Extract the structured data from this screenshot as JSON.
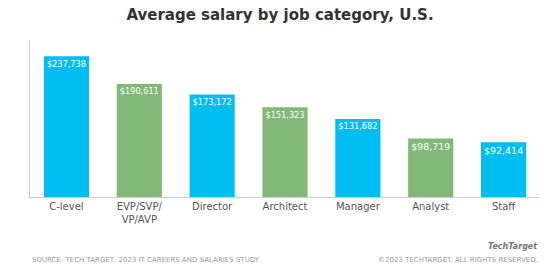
{
  "chart_data": {
    "type": "bar",
    "title": "Average salary by job category, U.S.",
    "categories": [
      "C-level",
      "EVP/SVP/\nVP/AVP",
      "Director",
      "Architect",
      "Manager",
      "Analyst",
      "Staff"
    ],
    "values": [
      237738,
      190611,
      173172,
      151323,
      131682,
      98719,
      92414
    ],
    "value_labels": [
      "$237,738",
      "$190,611",
      "$173,172",
      "$151,323",
      "$131,682",
      "$98,719",
      "$92,414"
    ],
    "data_labels": true,
    "colors": [
      "#00bef2",
      "#82b878",
      "#00bef2",
      "#82b878",
      "#00bef2",
      "#82b878",
      "#00bef2"
    ],
    "ylim": [
      0,
      265000
    ],
    "tick_labels": "x",
    "grid": false,
    "annotations": [
      "SOURCE: TECH TARGET, 2023 IT CAREERS AND SALARIES STUDY",
      "©2023 TECHTARGET. ALL RIGHTS RESERVED.",
      "TechTarget"
    ]
  }
}
